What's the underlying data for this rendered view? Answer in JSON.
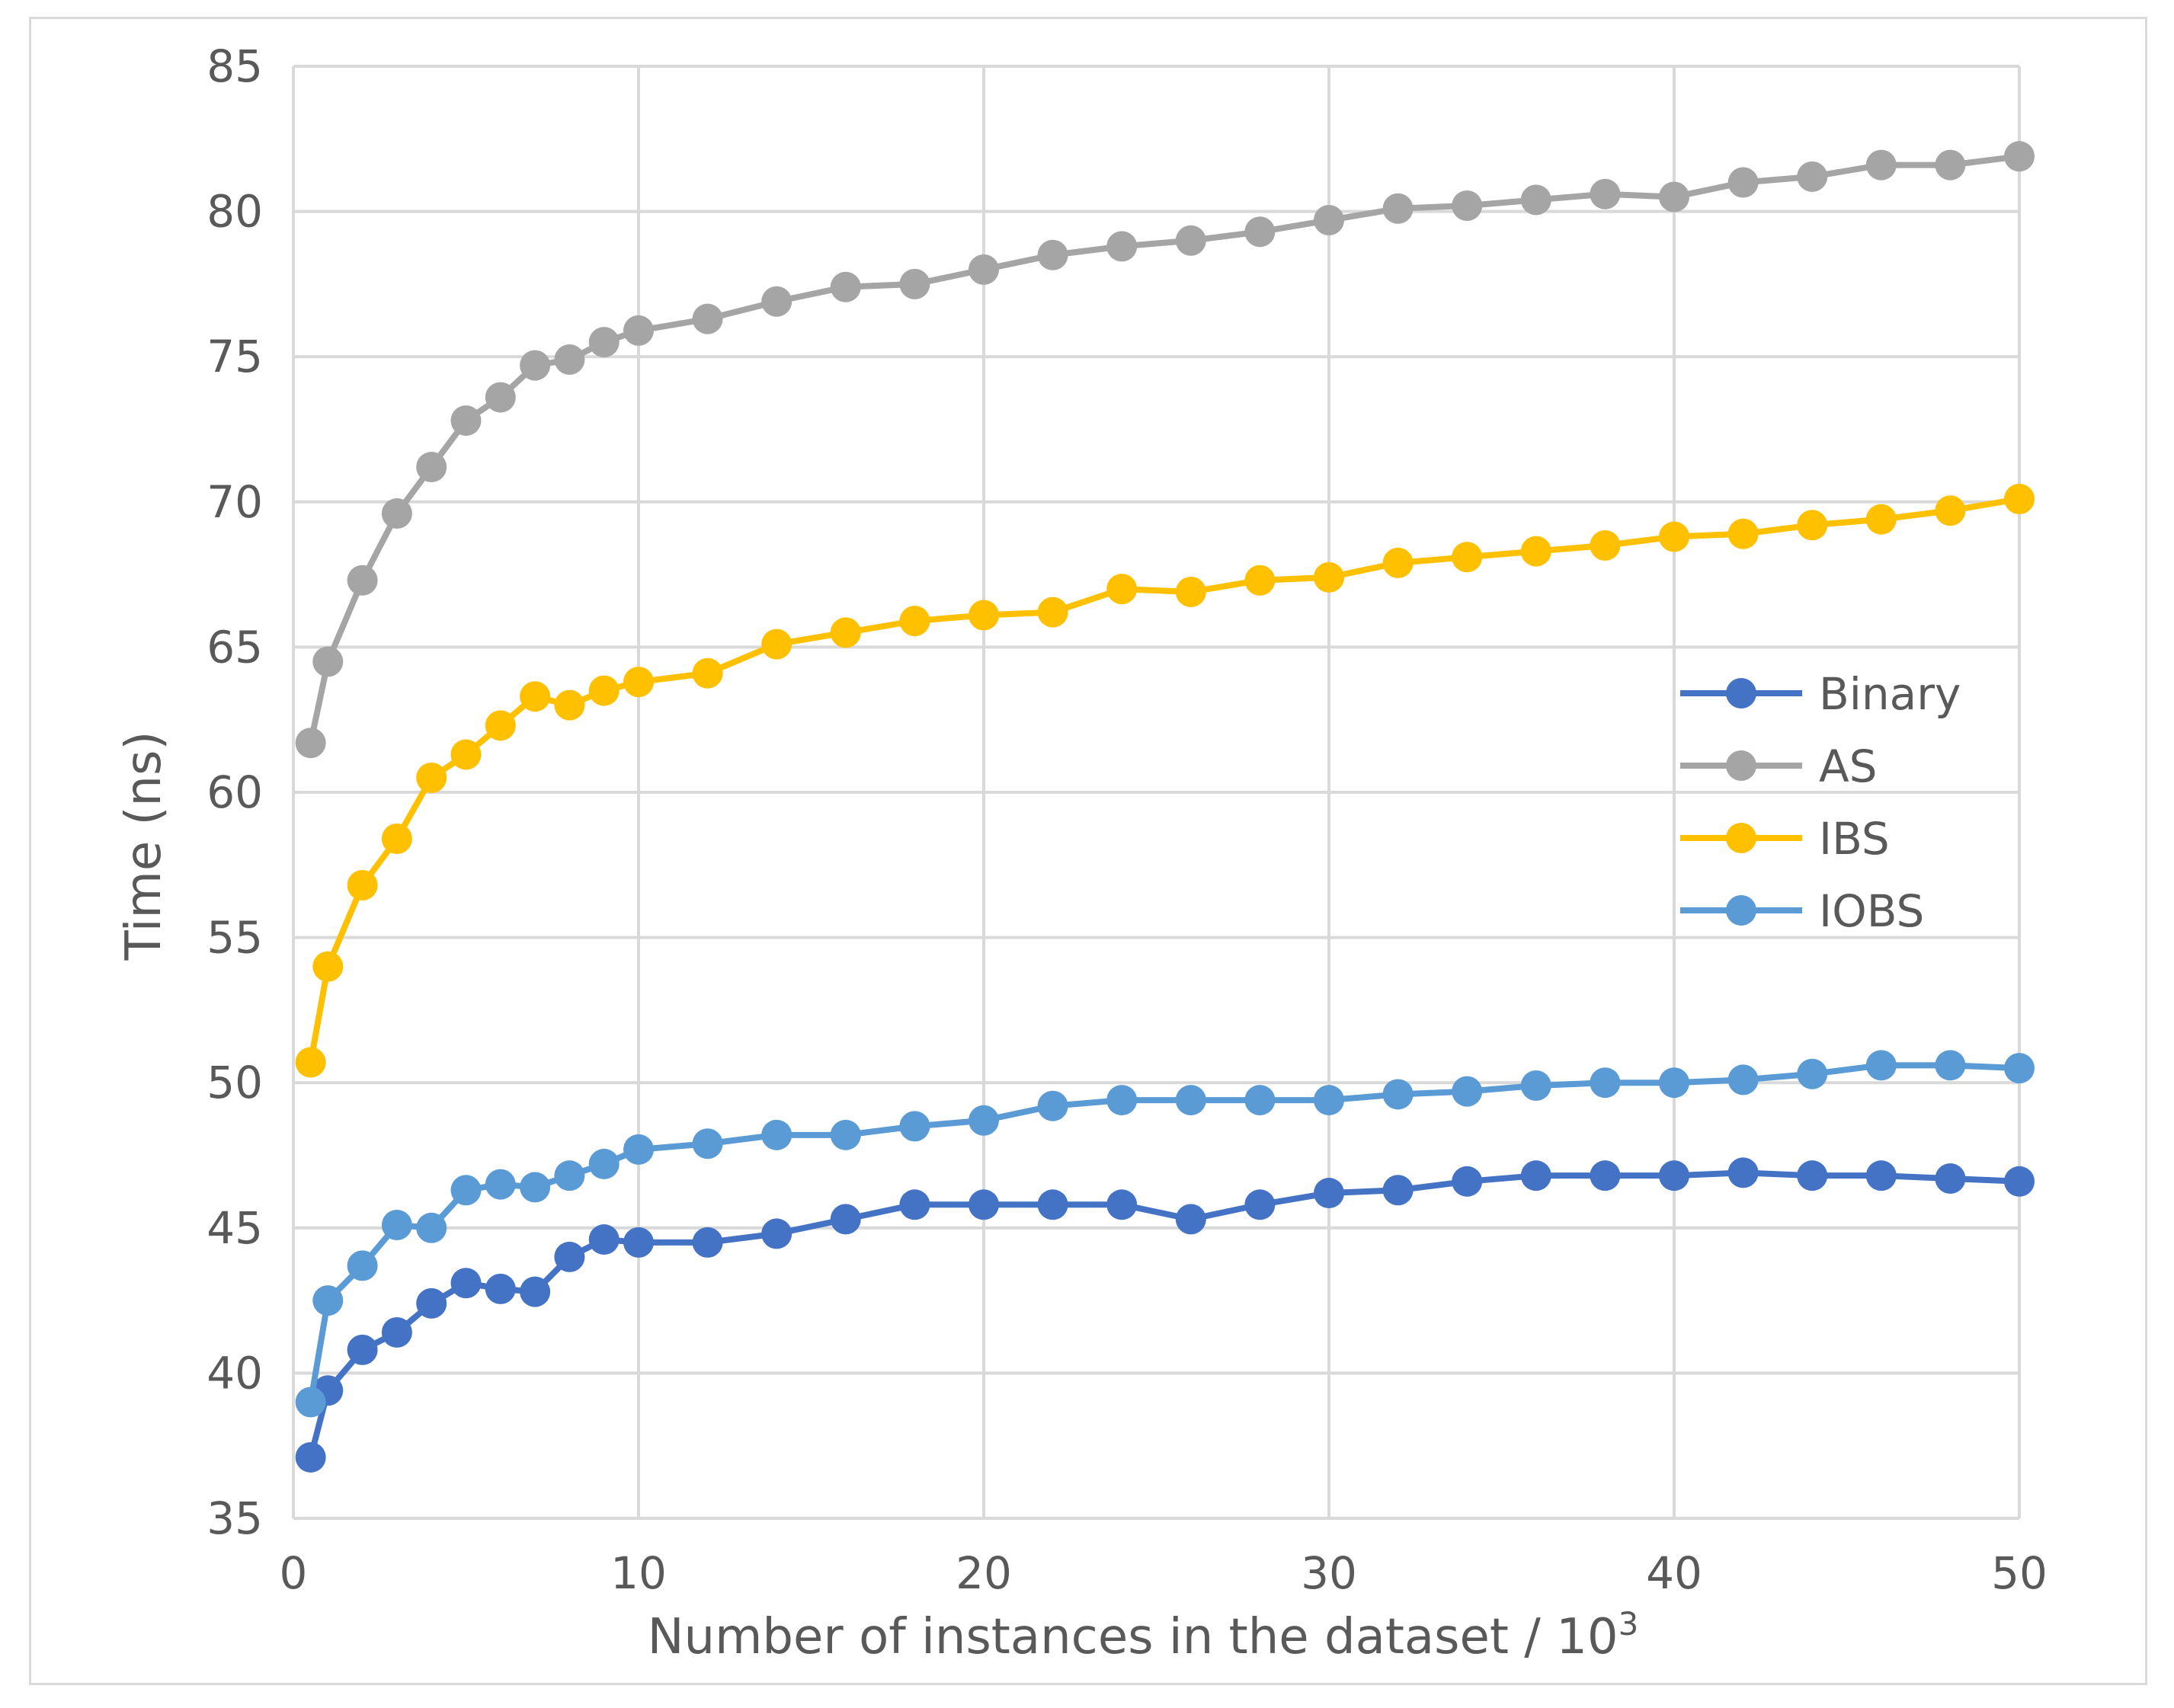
{
  "chart_data": {
    "type": "line",
    "xlabel": "Number of instances in the dataset / 10",
    "xlabel_superscript": "3",
    "ylabel": "Time (ns)",
    "xlim": [
      0,
      50
    ],
    "ylim": [
      35,
      85
    ],
    "xticks": [
      "0",
      "10",
      "20",
      "30",
      "40",
      "50"
    ],
    "yticks": [
      "35",
      "40",
      "45",
      "50",
      "55",
      "60",
      "65",
      "70",
      "75",
      "80",
      "85"
    ],
    "grid": true,
    "legend_position": "right-middle",
    "x": [
      0.5,
      1,
      2,
      3,
      4,
      5,
      6,
      7,
      8,
      9,
      10,
      12,
      14,
      16,
      18,
      20,
      22,
      24,
      26,
      28,
      30,
      32,
      34,
      36,
      38,
      40,
      42,
      44,
      46,
      48,
      50
    ],
    "series": [
      {
        "name": "Binary",
        "color": "#4472c4",
        "values": [
          37.1,
          39.4,
          40.8,
          41.4,
          42.4,
          43.1,
          42.9,
          42.8,
          44.0,
          44.6,
          44.5,
          44.5,
          44.8,
          45.3,
          45.8,
          45.8,
          45.8,
          45.8,
          45.3,
          45.8,
          46.2,
          46.3,
          46.6,
          46.8,
          46.8,
          46.8,
          46.9,
          46.8,
          46.8,
          46.7,
          46.6
        ]
      },
      {
        "name": "AS",
        "color": "#a5a5a5",
        "values": [
          61.7,
          64.5,
          67.3,
          69.6,
          71.2,
          72.8,
          73.6,
          74.7,
          74.9,
          75.5,
          75.9,
          76.3,
          76.9,
          77.4,
          77.5,
          78.0,
          78.5,
          78.8,
          79.0,
          79.3,
          79.7,
          80.1,
          80.2,
          80.4,
          80.6,
          80.5,
          81.0,
          81.2,
          81.6,
          81.6,
          81.9
        ]
      },
      {
        "name": "IBS",
        "color": "#ffc000",
        "values": [
          50.7,
          54.0,
          56.8,
          58.4,
          60.5,
          61.3,
          62.3,
          63.3,
          63.0,
          63.5,
          63.8,
          64.1,
          65.1,
          65.5,
          65.9,
          66.1,
          66.2,
          67.0,
          66.9,
          67.3,
          67.4,
          67.9,
          68.1,
          68.3,
          68.5,
          68.8,
          68.9,
          69.2,
          69.4,
          69.7,
          70.1
        ]
      },
      {
        "name": "IOBS",
        "color": "#5b9bd5",
        "values": [
          39.0,
          42.5,
          43.7,
          45.1,
          45.0,
          46.3,
          46.5,
          46.4,
          46.8,
          47.2,
          47.7,
          47.9,
          48.2,
          48.2,
          48.5,
          48.7,
          49.2,
          49.4,
          49.4,
          49.4,
          49.4,
          49.6,
          49.7,
          49.9,
          50.0,
          50.0,
          50.1,
          50.3,
          50.6,
          50.6,
          50.5
        ]
      }
    ]
  }
}
